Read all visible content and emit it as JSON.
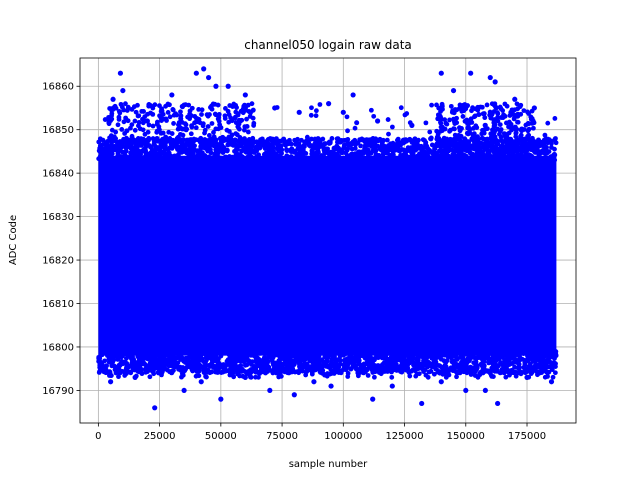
{
  "chart_data": {
    "type": "scatter",
    "title": "channel050 logain raw data",
    "xlabel": "sample number",
    "ylabel": "ADC Code",
    "xlim": [
      -7500,
      195000
    ],
    "ylim": [
      16782.5,
      16866.5
    ],
    "xticks": [
      0,
      25000,
      50000,
      75000,
      100000,
      125000,
      150000,
      175000
    ],
    "xtick_labels": [
      "0",
      "25000",
      "50000",
      "75000",
      "100000",
      "125000",
      "150000",
      "175000"
    ],
    "yticks": [
      16790,
      16800,
      16810,
      16820,
      16830,
      16840,
      16850,
      16860
    ],
    "ytick_labels": [
      "16790",
      "16800",
      "16810",
      "16820",
      "16830",
      "16840",
      "16850",
      "16860"
    ],
    "grid": true,
    "marker_color": "#0000ff",
    "x_range": [
      0,
      187000
    ],
    "y_band_dense": [
      16797,
      16845
    ],
    "points": [
      [
        9000,
        16863
      ],
      [
        40000,
        16863
      ],
      [
        43000,
        16864
      ],
      [
        45000,
        16862
      ],
      [
        48000,
        16860
      ],
      [
        53000,
        16860
      ],
      [
        140000,
        16863
      ],
      [
        152000,
        16863
      ],
      [
        160000,
        16862
      ],
      [
        162000,
        16861
      ],
      [
        104000,
        16858
      ],
      [
        94000,
        16856
      ],
      [
        100000,
        16854
      ],
      [
        114000,
        16852
      ],
      [
        128000,
        16851
      ],
      [
        20000,
        16852
      ],
      [
        30000,
        16858
      ],
      [
        6000,
        16857
      ],
      [
        170000,
        16857
      ],
      [
        178000,
        16855
      ],
      [
        10000,
        16859
      ],
      [
        60000,
        16858
      ],
      [
        72000,
        16855
      ],
      [
        82000,
        16854
      ],
      [
        145000,
        16859
      ],
      [
        23000,
        16786
      ],
      [
        50000,
        16788
      ],
      [
        35000,
        16790
      ],
      [
        112000,
        16788
      ],
      [
        132000,
        16787
      ],
      [
        163000,
        16787
      ],
      [
        5000,
        16792
      ],
      [
        15000,
        16793
      ],
      [
        70000,
        16790
      ],
      [
        80000,
        16789
      ],
      [
        95000,
        16791
      ],
      [
        120000,
        16791
      ],
      [
        150000,
        16790
      ],
      [
        158000,
        16790
      ],
      [
        185000,
        16792
      ],
      [
        42000,
        16792
      ],
      [
        60000,
        16793
      ],
      [
        88000,
        16792
      ],
      [
        140000,
        16792
      ],
      [
        175000,
        16793
      ]
    ]
  }
}
